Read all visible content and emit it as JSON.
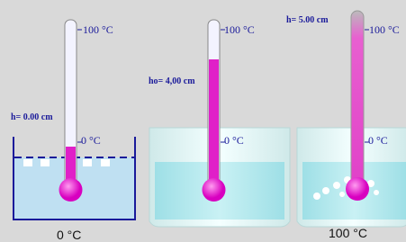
{
  "panels": [
    {
      "top_label": "100 °C",
      "zero_label": "0 °C",
      "height_label": "h= 0.00 cm",
      "caption": "0 °C"
    },
    {
      "top_label": "100 °C",
      "zero_label": "0 °C",
      "height_label": "ho= 4,00 cm"
    },
    {
      "top_label": "100 °C",
      "zero_label": "0 °C",
      "height_label": "h= 5.00 cm",
      "caption": "100 °C"
    }
  ]
}
